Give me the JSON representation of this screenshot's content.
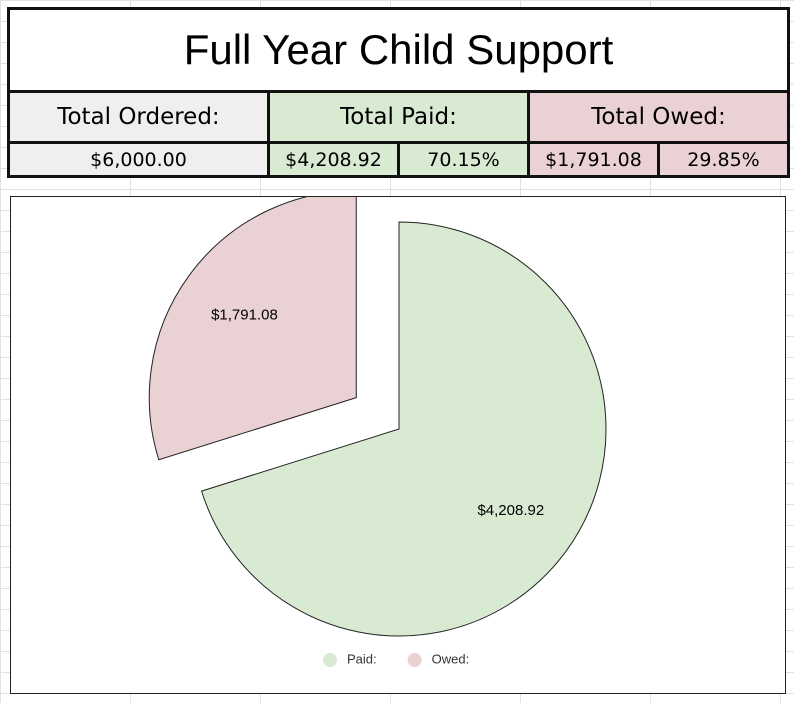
{
  "table": {
    "title": "Full Year Child Support",
    "headers": [
      "Total Ordered:",
      "Total Paid:",
      "Total Owed:"
    ],
    "values": [
      "$6,000.00",
      "$4,208.92",
      "70.15%",
      "$1,791.08",
      "29.85%"
    ]
  },
  "chart_data": {
    "type": "pie",
    "categories": [
      "Paid:",
      "Owed:"
    ],
    "values": [
      4208.92,
      1791.08
    ],
    "value_labels": [
      "$4,208.92",
      "$1,791.08"
    ],
    "colors": [
      "#d9ead3",
      "#ead1d3"
    ],
    "legend": "bottom"
  }
}
